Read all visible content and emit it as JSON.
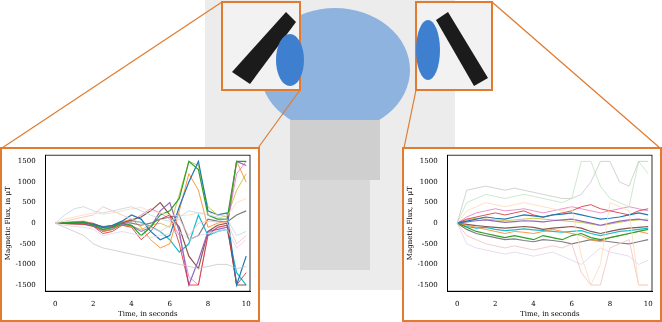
{
  "chart_data": [
    {
      "type": "line",
      "x_label": "Time, in seconds",
      "y_label": "Magnetic Flux, in μT",
      "x": [
        0,
        0.5,
        1,
        1.5,
        2,
        2.5,
        3,
        3.5,
        4,
        4.5,
        5,
        5.5,
        6,
        6.5,
        7,
        7.5,
        8,
        8.5,
        9,
        9.5,
        10
      ],
      "xlim": [
        -0.5,
        10.2
      ],
      "xticks": [
        0,
        2,
        4,
        6,
        8,
        10
      ],
      "ylim": [
        -1650,
        1650
      ],
      "yticks": [
        -1500,
        -1000,
        -500,
        0,
        500,
        1000,
        1500
      ],
      "grid": false,
      "series": [
        {
          "color": "#bcd6e8",
          "values": [
            0,
            200,
            350,
            400,
            300,
            250,
            300,
            350,
            400,
            300,
            200,
            100,
            50,
            150,
            300,
            250,
            200,
            150,
            100,
            -300,
            -200
          ]
        },
        {
          "color": "#ffd9b7",
          "values": [
            0,
            100,
            150,
            200,
            250,
            220,
            250,
            300,
            350,
            380,
            300,
            250,
            200,
            180,
            200,
            250,
            250,
            200,
            180,
            500,
            600
          ]
        },
        {
          "color": "#c8c8c8",
          "values": [
            0,
            -100,
            -200,
            -300,
            -500,
            -600,
            -650,
            -700,
            -750,
            -800,
            -850,
            -900,
            -950,
            -1000,
            -1050,
            -1100,
            -1050,
            -1000,
            -1000,
            -1100,
            -1050
          ]
        },
        {
          "color": "#f3bfbf",
          "values": [
            0,
            50,
            100,
            150,
            200,
            400,
            300,
            200,
            100,
            0,
            -100,
            -200,
            -50,
            100,
            -300,
            0,
            50,
            30,
            20,
            -500,
            -300
          ]
        },
        {
          "color": "#dfd4ec",
          "values": [
            0,
            -50,
            -80,
            -100,
            -150,
            -300,
            -250,
            -200,
            -250,
            -300,
            -350,
            -300,
            -250,
            -200,
            -400,
            -300,
            -250,
            -200,
            -150,
            -600,
            -400
          ]
        },
        {
          "color": "#2ca02c",
          "values": [
            0,
            10,
            20,
            30,
            -50,
            -150,
            -100,
            0,
            -50,
            -300,
            -100,
            200,
            300,
            600,
            1500,
            1300,
            200,
            100,
            100,
            1500,
            1500
          ]
        },
        {
          "color": "#1f77b4",
          "values": [
            0,
            0,
            10,
            20,
            -30,
            -100,
            -50,
            50,
            200,
            100,
            -200,
            -400,
            -300,
            400,
            1000,
            1500,
            300,
            200,
            250,
            -1500,
            -800
          ]
        },
        {
          "color": "#ff7f0e",
          "values": [
            0,
            20,
            40,
            50,
            -20,
            -200,
            -150,
            30,
            100,
            -100,
            -400,
            -600,
            -500,
            300,
            1200,
            800,
            -100,
            0,
            50,
            1500,
            1000
          ]
        },
        {
          "color": "#d62728",
          "values": [
            0,
            -10,
            -20,
            -30,
            -80,
            -250,
            -200,
            -50,
            -100,
            -400,
            -200,
            100,
            200,
            -500,
            -1500,
            -1500,
            -300,
            -100,
            -50,
            -1500,
            -1200
          ]
        },
        {
          "color": "#9467bd",
          "values": [
            0,
            -5,
            -10,
            -20,
            -60,
            -200,
            -150,
            -20,
            -60,
            -200,
            -100,
            300,
            500,
            -200,
            -1500,
            -900,
            -200,
            -150,
            -100,
            1500,
            1400
          ]
        },
        {
          "color": "#8c564b",
          "values": [
            0,
            5,
            10,
            15,
            -10,
            -100,
            -80,
            10,
            80,
            150,
            300,
            500,
            200,
            -100,
            -800,
            -1100,
            -200,
            -50,
            0,
            -1500,
            -1500
          ]
        },
        {
          "color": "#e377c2",
          "values": [
            0,
            15,
            30,
            40,
            0,
            -120,
            -90,
            0,
            40,
            200,
            350,
            250,
            100,
            -300,
            -1300,
            -1500,
            -250,
            -100,
            -50,
            1200,
            1500
          ]
        },
        {
          "color": "#7f7f7f",
          "values": [
            0,
            0,
            5,
            10,
            -20,
            -80,
            -60,
            20,
            0,
            -50,
            0,
            100,
            150,
            200,
            -400,
            -300,
            100,
            50,
            30,
            200,
            300
          ]
        },
        {
          "color": "#bcbd22",
          "values": [
            0,
            -10,
            -15,
            -20,
            -70,
            -180,
            -140,
            -40,
            -80,
            -150,
            -50,
            0,
            -100,
            700,
            1500,
            1400,
            400,
            200,
            150,
            800,
            1200
          ]
        },
        {
          "color": "#17becf",
          "values": [
            0,
            10,
            15,
            20,
            -40,
            -160,
            -110,
            10,
            60,
            20,
            -80,
            -200,
            -400,
            -700,
            -500,
            200,
            -300,
            -200,
            -150,
            -1200,
            -1500
          ]
        }
      ]
    },
    {
      "type": "line",
      "x_label": "Time, in seconds",
      "y_label": "Magnetic Flux, in μT",
      "x": [
        0,
        0.5,
        1,
        1.5,
        2,
        2.5,
        3,
        3.5,
        4,
        4.5,
        5,
        5.5,
        6,
        6.5,
        7,
        7.5,
        8,
        8.5,
        9,
        9.5,
        10
      ],
      "xlim": [
        -0.5,
        10.2
      ],
      "xticks": [
        0,
        2,
        4,
        6,
        8,
        10
      ],
      "ylim": [
        -1650,
        1650
      ],
      "yticks": [
        -1500,
        -1000,
        -500,
        0,
        500,
        1000,
        1500
      ],
      "grid": false,
      "series": [
        {
          "color": "#c8c8c8",
          "values": [
            0,
            800,
            850,
            900,
            850,
            800,
            850,
            800,
            750,
            700,
            650,
            600,
            600,
            700,
            1000,
            1500,
            1500,
            1000,
            900,
            1500,
            1500
          ]
        },
        {
          "color": "#ffd9b7",
          "values": [
            0,
            300,
            400,
            500,
            450,
            400,
            450,
            500,
            450,
            400,
            350,
            300,
            400,
            -800,
            -1500,
            -1000,
            500,
            400,
            300,
            -1500,
            -1500
          ]
        },
        {
          "color": "#c0e3c0",
          "values": [
            0,
            500,
            600,
            700,
            650,
            600,
            650,
            700,
            650,
            600,
            550,
            500,
            600,
            1500,
            1500,
            900,
            600,
            500,
            400,
            1500,
            1200
          ]
        },
        {
          "color": "#f3bfbf",
          "values": [
            0,
            -300,
            -400,
            -500,
            -550,
            -600,
            -550,
            -600,
            -650,
            -600,
            -550,
            -600,
            -500,
            -1200,
            -1500,
            -1500,
            -600,
            -500,
            -400,
            -1500,
            -1500
          ]
        },
        {
          "color": "#dfd4ec",
          "values": [
            0,
            -500,
            -600,
            -650,
            -700,
            -750,
            -700,
            -750,
            -800,
            -750,
            -700,
            -800,
            -900,
            -1000,
            -800,
            -600,
            -700,
            -750,
            -800,
            -1000,
            -900
          ]
        },
        {
          "color": "#2ca02c",
          "values": [
            0,
            -100,
            -200,
            -250,
            -300,
            -350,
            -300,
            -350,
            -400,
            -300,
            -350,
            -400,
            -300,
            -250,
            -350,
            -400,
            -350,
            -300,
            -250,
            -200,
            -150
          ]
        },
        {
          "color": "#1f77b4",
          "values": [
            0,
            50,
            100,
            150,
            120,
            100,
            150,
            200,
            180,
            150,
            200,
            220,
            250,
            200,
            150,
            100,
            120,
            150,
            200,
            250,
            200
          ]
        },
        {
          "color": "#ff7f0e",
          "values": [
            0,
            -50,
            -100,
            -150,
            -200,
            -250,
            -200,
            -220,
            -250,
            -200,
            -150,
            -200,
            -250,
            -300,
            -400,
            -450,
            -350,
            -300,
            -250,
            -200,
            -250
          ]
        },
        {
          "color": "#d62728",
          "values": [
            0,
            100,
            150,
            200,
            250,
            200,
            250,
            300,
            200,
            150,
            200,
            250,
            300,
            400,
            450,
            350,
            300,
            250,
            200,
            300,
            350
          ]
        },
        {
          "color": "#9467bd",
          "values": [
            0,
            30,
            60,
            80,
            50,
            20,
            40,
            60,
            50,
            30,
            60,
            80,
            100,
            50,
            0,
            -50,
            0,
            50,
            80,
            100,
            60
          ]
        },
        {
          "color": "#8c564b",
          "values": [
            0,
            -30,
            -60,
            -80,
            -100,
            -120,
            -100,
            -80,
            -100,
            -150,
            -120,
            -100,
            -80,
            -120,
            -200,
            -250,
            -200,
            -150,
            -120,
            -100,
            -80
          ]
        },
        {
          "color": "#e377c2",
          "values": [
            0,
            150,
            250,
            300,
            350,
            300,
            320,
            350,
            300,
            250,
            300,
            350,
            400,
            350,
            300,
            250,
            300,
            350,
            400,
            350,
            300
          ]
        },
        {
          "color": "#7f7f7f",
          "values": [
            0,
            -150,
            -250,
            -300,
            -350,
            -400,
            -380,
            -420,
            -450,
            -400,
            -420,
            -450,
            -500,
            -450,
            -400,
            -420,
            -450,
            -480,
            -500,
            -450,
            -400
          ]
        },
        {
          "color": "#bcbd22",
          "values": [
            0,
            80,
            120,
            100,
            80,
            60,
            80,
            100,
            120,
            100,
            80,
            60,
            40,
            20,
            -20,
            -60,
            -20,
            20,
            60,
            80,
            100
          ]
        },
        {
          "color": "#17becf",
          "values": [
            0,
            -80,
            -120,
            -100,
            -150,
            -180,
            -160,
            -140,
            -160,
            -180,
            -200,
            -220,
            -200,
            -180,
            -250,
            -300,
            -250,
            -200,
            -180,
            -150,
            -120
          ]
        }
      ]
    }
  ]
}
